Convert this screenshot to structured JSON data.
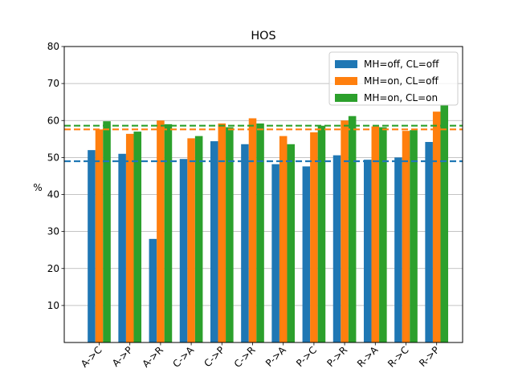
{
  "chart_data": {
    "type": "bar",
    "title": "HOS",
    "xlabel": "",
    "ylabel": "%",
    "ylim": [
      0,
      80
    ],
    "yticks": [
      10,
      20,
      30,
      40,
      50,
      60,
      70,
      80
    ],
    "categories": [
      "A->C",
      "A->P",
      "A->R",
      "C->A",
      "C->P",
      "C->R",
      "P->A",
      "P->C",
      "P->R",
      "R->A",
      "R->C",
      "R->P"
    ],
    "series": [
      {
        "name": "MH=off, CL=off",
        "color": "#1f77b4",
        "values": [
          52.0,
          51.0,
          28.0,
          49.6,
          54.4,
          53.6,
          48.2,
          47.6,
          50.6,
          49.4,
          50.0,
          54.2
        ]
      },
      {
        "name": "MH=on, CL=off",
        "color": "#ff7f0e",
        "values": [
          57.6,
          56.4,
          60.0,
          55.2,
          59.2,
          60.6,
          55.8,
          56.8,
          60.0,
          58.4,
          57.2,
          62.4
        ]
      },
      {
        "name": "MH=on, CL=on",
        "color": "#2ca02c",
        "values": [
          59.8,
          57.0,
          59.0,
          55.8,
          58.2,
          59.2,
          53.6,
          58.6,
          61.2,
          58.2,
          57.4,
          64.2
        ]
      }
    ],
    "reference_lines": [
      {
        "color": "#1f77b4",
        "value": 49.0
      },
      {
        "color": "#ff7f0e",
        "value": 57.6
      },
      {
        "color": "#2ca02c",
        "value": 58.6
      }
    ],
    "grid": "y",
    "legend": "top-right"
  }
}
